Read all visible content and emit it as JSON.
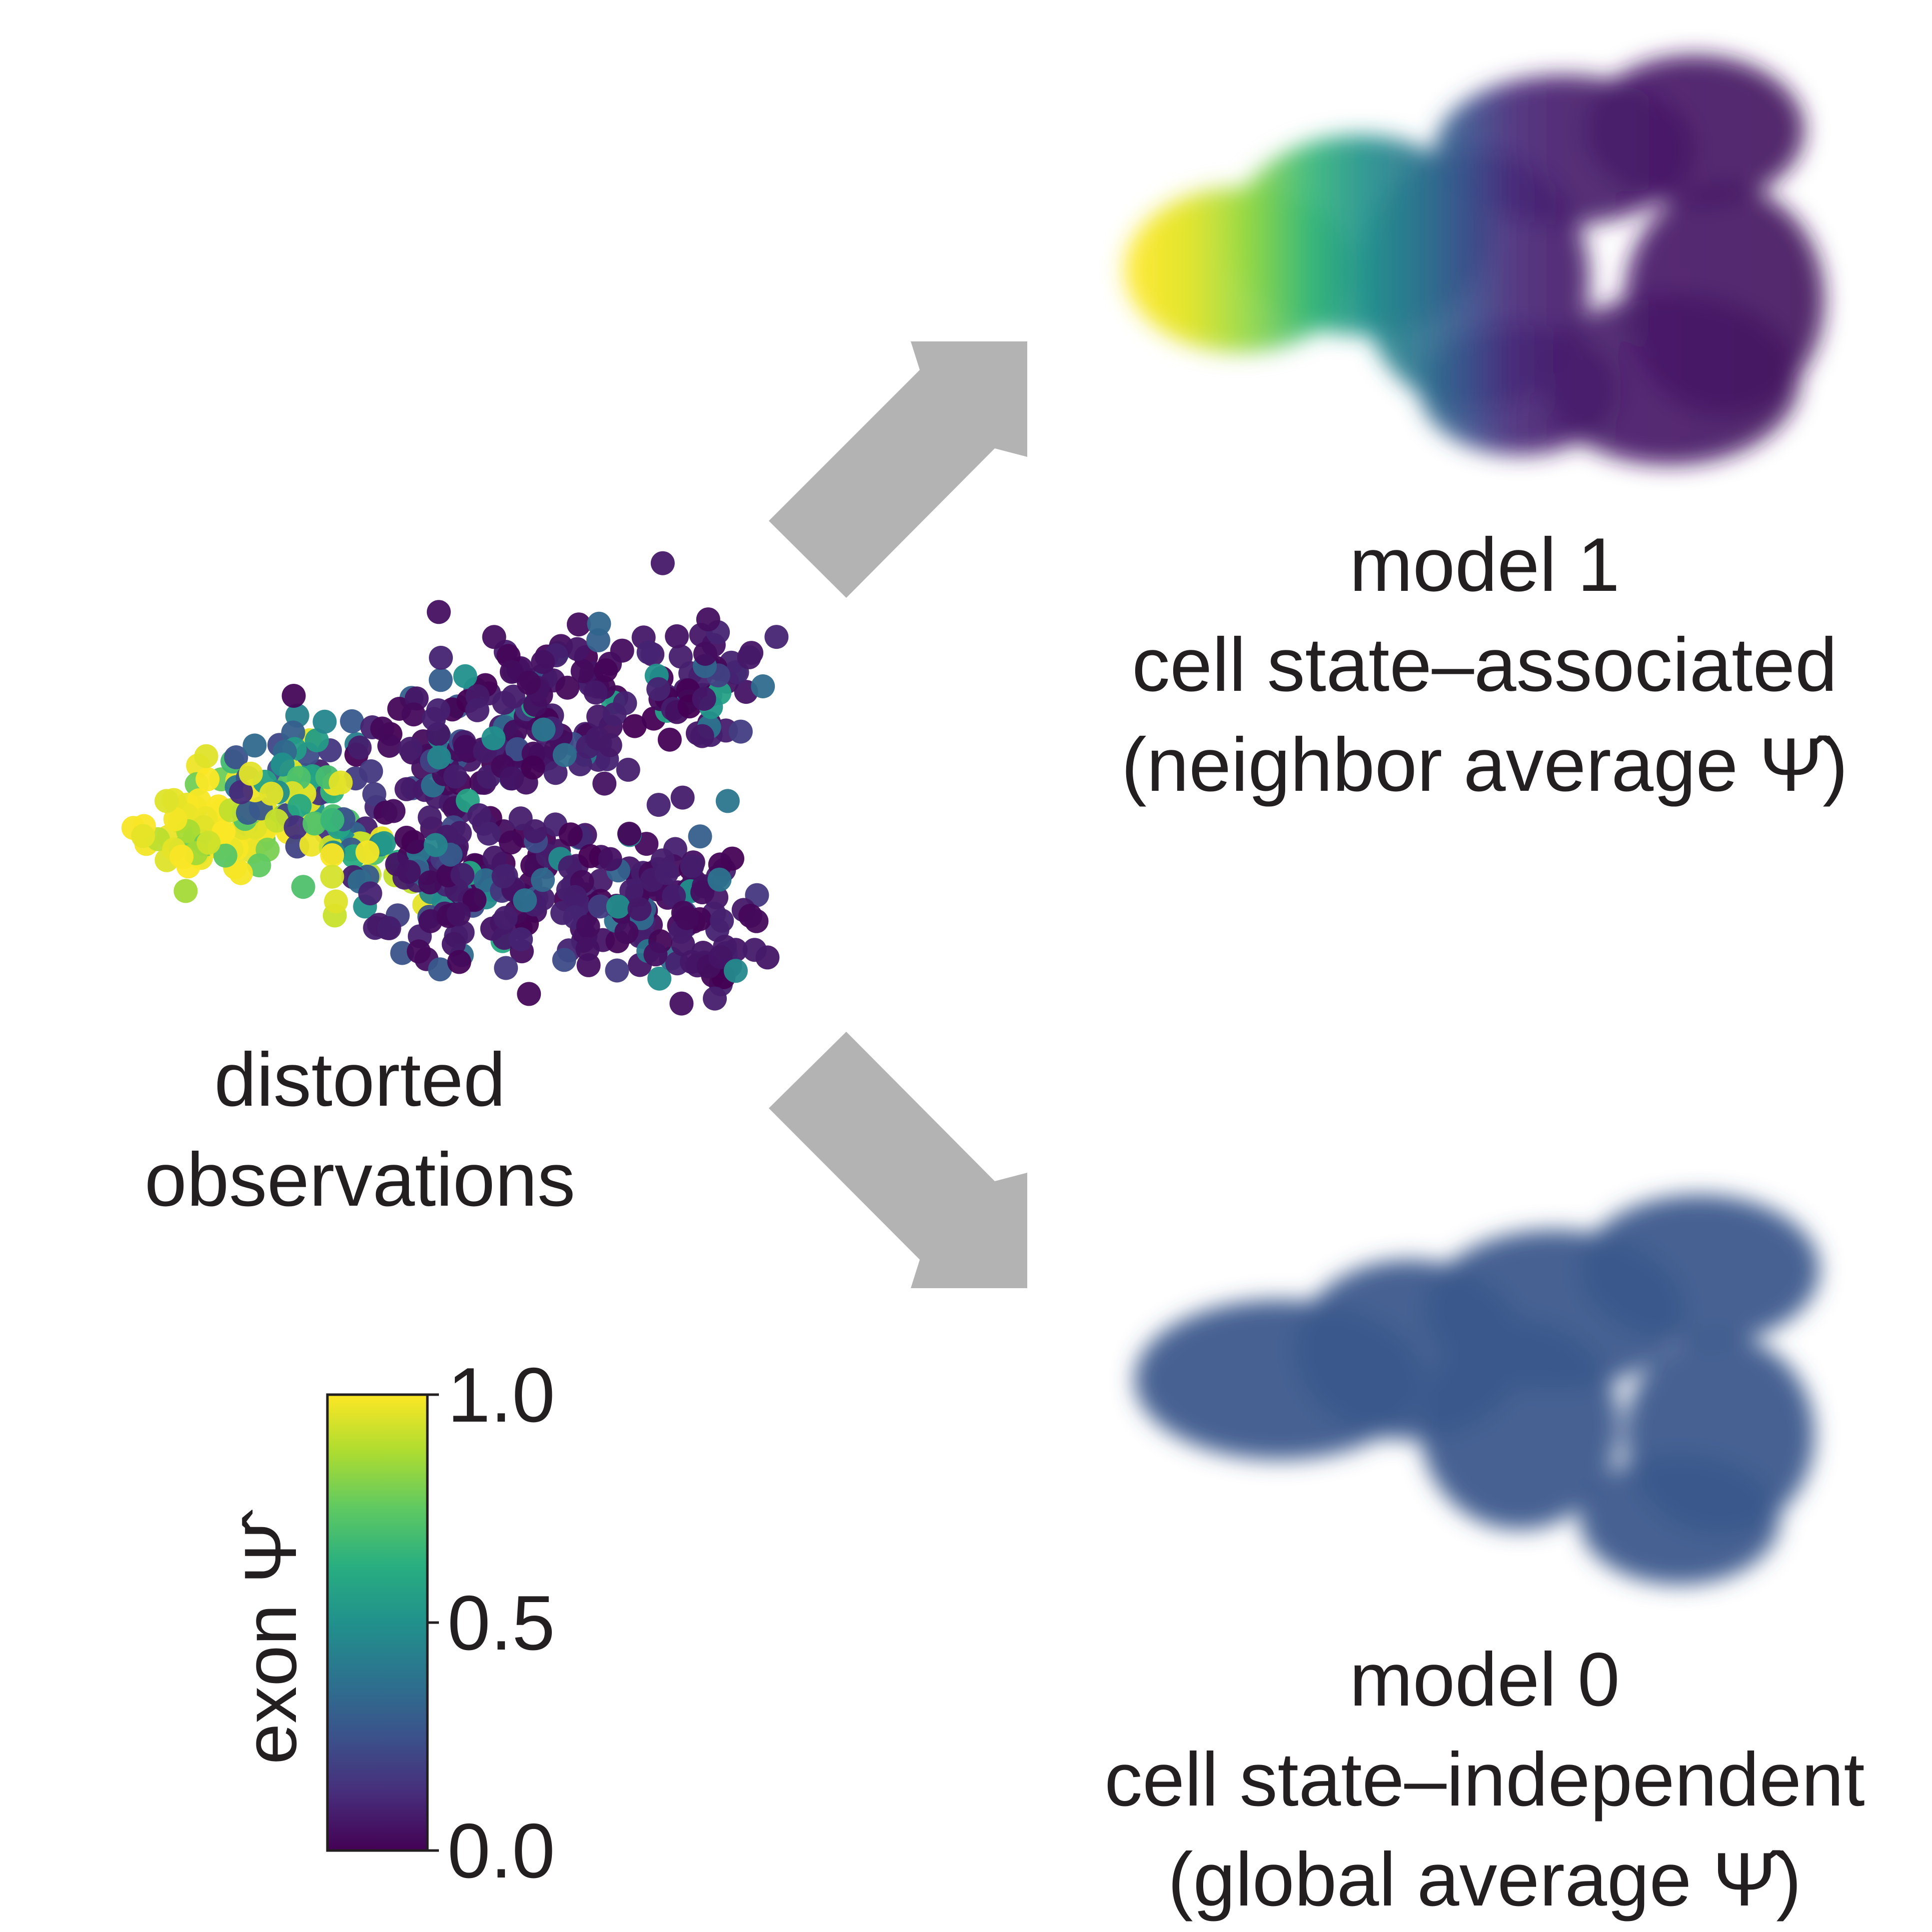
{
  "panels": {
    "observations": {
      "line1": "distorted",
      "line2": "observations"
    },
    "model1": {
      "line1": "model 1",
      "line2": "cell state–associated",
      "line3": "(neighbor average Ψ̂)"
    },
    "model0": {
      "line1": "model 0",
      "line2": "cell state–independent",
      "line3": "(global average Ψ̂)"
    }
  },
  "colorbar": {
    "title": "exon Ψ̂",
    "ticks": [
      "1.0",
      "0.5",
      "0.0"
    ],
    "range": [
      0.0,
      1.0
    ],
    "colormap": "viridis"
  },
  "colors": {
    "arrow": "#b3b3b3",
    "global_average": "#3b5a8c",
    "text": "#231f20"
  }
}
